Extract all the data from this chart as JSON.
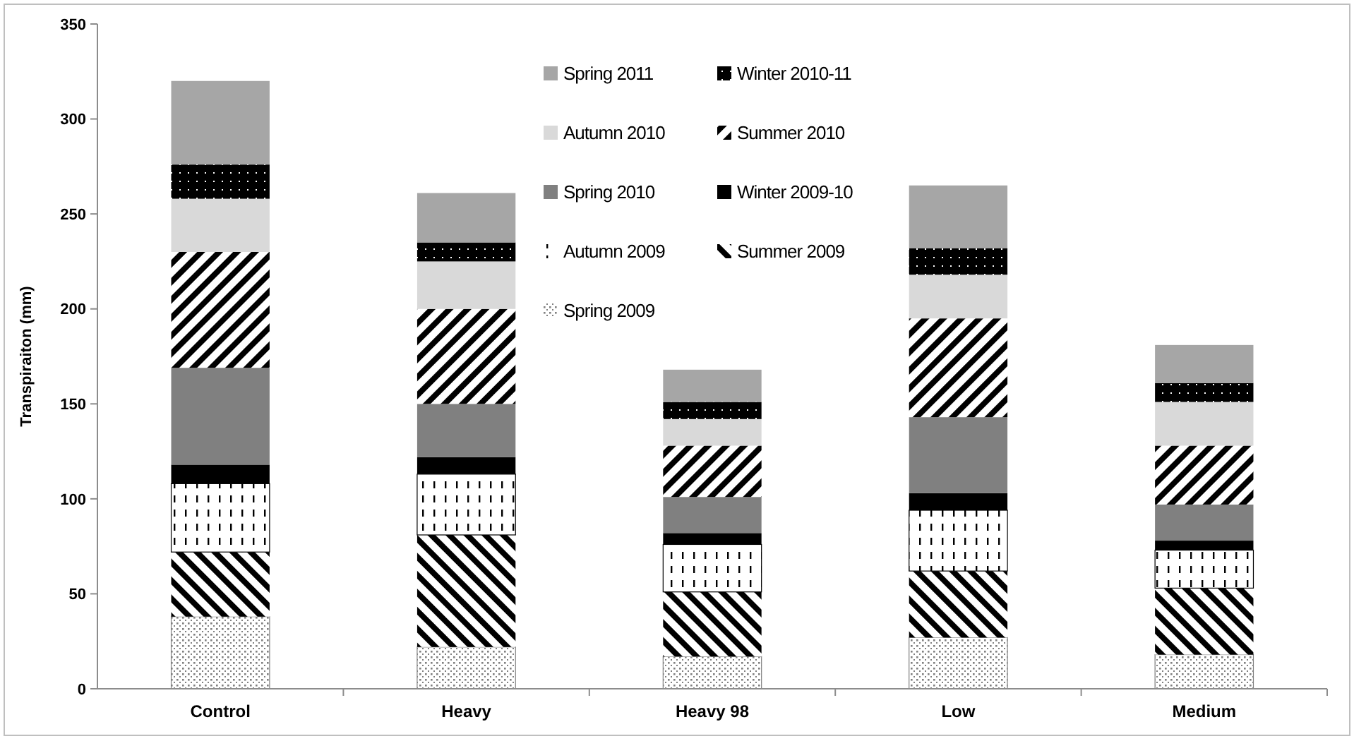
{
  "chart_data": {
    "type": "bar",
    "stacked": true,
    "ylabel": "Transpiraiton (mm)",
    "categories": [
      "Control",
      "Heavy",
      "Heavy 98",
      "Low",
      "Medium"
    ],
    "series": [
      {
        "name": "Spring 2009",
        "color": "#808080",
        "values": [
          38,
          22,
          17,
          27,
          18
        ]
      },
      {
        "name": "Summer 2009",
        "color": "#000000",
        "values": [
          34,
          59,
          34,
          35,
          35
        ]
      },
      {
        "name": "Autumn 2009",
        "color": "#000000",
        "values": [
          36,
          32,
          25,
          32,
          20
        ]
      },
      {
        "name": "Winter 2009-10",
        "color": "#000000",
        "values": [
          10,
          9,
          6,
          9,
          5
        ]
      },
      {
        "name": "Spring 2010",
        "color": "#808080",
        "values": [
          51,
          28,
          19,
          40,
          19
        ]
      },
      {
        "name": "Summer 2010",
        "color": "#000000",
        "values": [
          61,
          50,
          27,
          52,
          31
        ]
      },
      {
        "name": "Autumn 2010",
        "color": "#d9d9d9",
        "values": [
          28,
          25,
          14,
          23,
          23
        ]
      },
      {
        "name": "Winter 2010-11",
        "color": "#000000",
        "values": [
          18,
          10,
          9,
          14,
          10
        ]
      },
      {
        "name": "Spring 2011",
        "color": "#a6a6a6",
        "values": [
          44,
          26,
          17,
          33,
          20
        ]
      }
    ],
    "ylim": [
      0,
      350
    ],
    "yticks": [
      0,
      50,
      100,
      150,
      200,
      250,
      300,
      350
    ],
    "grid": false,
    "legend": "top right"
  }
}
